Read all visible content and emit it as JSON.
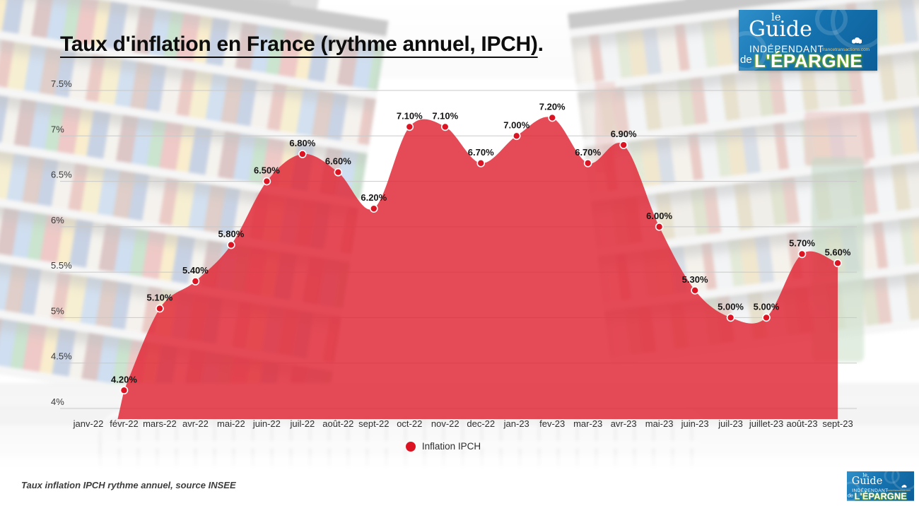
{
  "title": {
    "text": "Taux d'inflation en France (rythme annuel, IPCH)",
    "suffix": "."
  },
  "logo": {
    "le": "le",
    "guide": "Guide",
    "independant": "INDÉPENDANT",
    "de": "de",
    "epargne": "L'ÉPARGNE",
    "site": "francetransactions.com"
  },
  "legend": {
    "label": "Inflation IPCH"
  },
  "footer": {
    "note": "Taux inflation IPCH rythme annuel, source INSEE"
  },
  "chart_data": {
    "type": "area",
    "title": "Taux d'inflation en France (rythme annuel, IPCH)",
    "xlabel": "",
    "ylabel": "",
    "x_categories": [
      "janv-22",
      "févr-22",
      "mars-22",
      "avr-22",
      "mai-22",
      "juin-22",
      "juil-22",
      "août-22",
      "sept-22",
      "oct-22",
      "nov-22",
      "dec-22",
      "jan-23",
      "fev-23",
      "mar-23",
      "avr-23",
      "mai-23",
      "juin-23",
      "juil-23",
      "juillet-23",
      "août-23",
      "sept-23"
    ],
    "series": [
      {
        "name": "Inflation IPCH",
        "values": [
          null,
          4.2,
          5.1,
          5.4,
          5.8,
          6.5,
          6.8,
          6.6,
          6.2,
          7.1,
          7.1,
          6.7,
          7.0,
          7.2,
          6.7,
          6.9,
          6.0,
          5.3,
          5.0,
          5.0,
          5.7,
          5.6
        ]
      }
    ],
    "point_labels": [
      null,
      "4.20%",
      "5.10%",
      "5.40%",
      "5.80%",
      "6.50%",
      "6.80%",
      "6.60%",
      "6.20%",
      "7.10%",
      "7.10%",
      "6.70%",
      "7.00%",
      "7.20%",
      "6.70%",
      "6.90%",
      "6.00%",
      "5.30%",
      "5.00%",
      "5.00%",
      "5.70%",
      "5.60%"
    ],
    "y_ticks": [
      {
        "label": "7.5%",
        "value": 7.5
      },
      {
        "label": "7%",
        "value": 7.0
      },
      {
        "label": "6.5%",
        "value": 6.5
      },
      {
        "label": "6%",
        "value": 6.0
      },
      {
        "label": "5.5%",
        "value": 5.5
      },
      {
        "label": "5%",
        "value": 5.0
      },
      {
        "label": "4.5%",
        "value": 4.5
      },
      {
        "label": "4%",
        "value": 4.0
      }
    ],
    "ylim": [
      3.88,
      7.5
    ],
    "grid": "horizontal",
    "legend_position": "bottom-center",
    "colors": {
      "area": "#e02837",
      "area_opacity": 0.84,
      "marker": "#dc1322",
      "grid": "#c9c9c9",
      "point_label": "#151515",
      "tick_label": "#3a3a3a"
    }
  }
}
